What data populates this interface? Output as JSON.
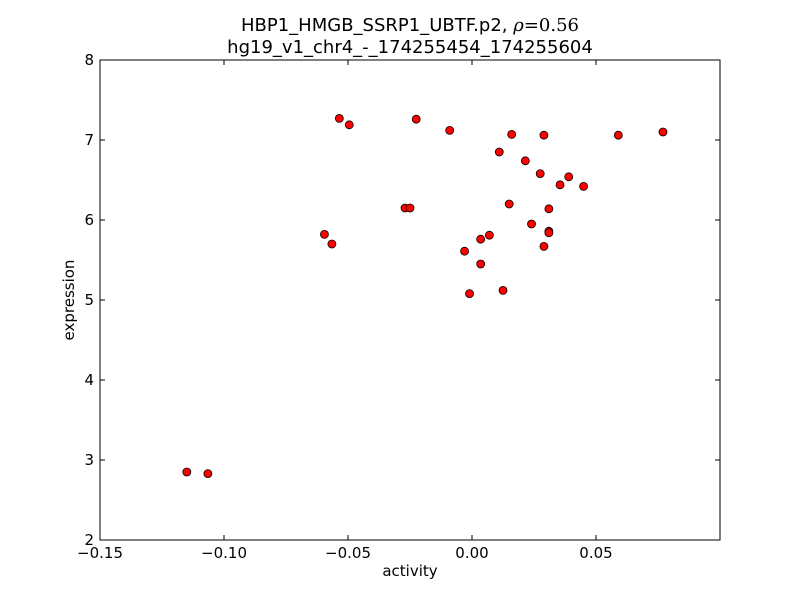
{
  "chart_data": {
    "type": "scatter",
    "title_line1_prefix": "HBP1_HMGB_SSRP1_UBTF.p2, ",
    "title_rho_symbol": "ρ",
    "title_rho_value": "=0.56",
    "title_line2": "hg19_v1_chr4_-_174255454_174255604",
    "xlabel": "activity",
    "ylabel": "expression",
    "xlim": [
      -0.15,
      0.1
    ],
    "ylim": [
      2,
      8
    ],
    "xticks": [
      -0.15,
      -0.1,
      -0.05,
      0.0,
      0.05
    ],
    "xtick_labels": [
      "−0.15",
      "−0.10",
      "−0.05",
      "0.00",
      "0.05"
    ],
    "yticks": [
      2,
      3,
      4,
      5,
      6,
      7,
      8
    ],
    "ytick_labels": [
      "2",
      "3",
      "4",
      "5",
      "6",
      "7",
      "8"
    ],
    "grid": false,
    "marker_color": "#ff0000",
    "marker_edge_color": "#000000",
    "points": [
      {
        "x": -0.115,
        "y": 2.85
      },
      {
        "x": -0.1065,
        "y": 2.83
      },
      {
        "x": -0.0595,
        "y": 5.82
      },
      {
        "x": -0.0565,
        "y": 5.7
      },
      {
        "x": -0.0535,
        "y": 7.27
      },
      {
        "x": -0.0495,
        "y": 7.19
      },
      {
        "x": -0.027,
        "y": 6.15
      },
      {
        "x": -0.025,
        "y": 6.15
      },
      {
        "x": -0.0225,
        "y": 7.26
      },
      {
        "x": -0.009,
        "y": 7.12
      },
      {
        "x": -0.003,
        "y": 5.61
      },
      {
        "x": -0.001,
        "y": 5.08
      },
      {
        "x": 0.0035,
        "y": 5.76
      },
      {
        "x": 0.0035,
        "y": 5.45
      },
      {
        "x": 0.007,
        "y": 5.81
      },
      {
        "x": 0.011,
        "y": 6.85
      },
      {
        "x": 0.0125,
        "y": 5.12
      },
      {
        "x": 0.015,
        "y": 6.2
      },
      {
        "x": 0.016,
        "y": 7.07
      },
      {
        "x": 0.0215,
        "y": 6.74
      },
      {
        "x": 0.024,
        "y": 5.95
      },
      {
        "x": 0.0275,
        "y": 6.58
      },
      {
        "x": 0.029,
        "y": 7.06
      },
      {
        "x": 0.029,
        "y": 5.67
      },
      {
        "x": 0.031,
        "y": 6.14
      },
      {
        "x": 0.031,
        "y": 5.86
      },
      {
        "x": 0.031,
        "y": 5.84
      },
      {
        "x": 0.0355,
        "y": 6.44
      },
      {
        "x": 0.039,
        "y": 6.54
      },
      {
        "x": 0.045,
        "y": 6.42
      },
      {
        "x": 0.059,
        "y": 7.06
      },
      {
        "x": 0.077,
        "y": 7.1
      }
    ]
  }
}
